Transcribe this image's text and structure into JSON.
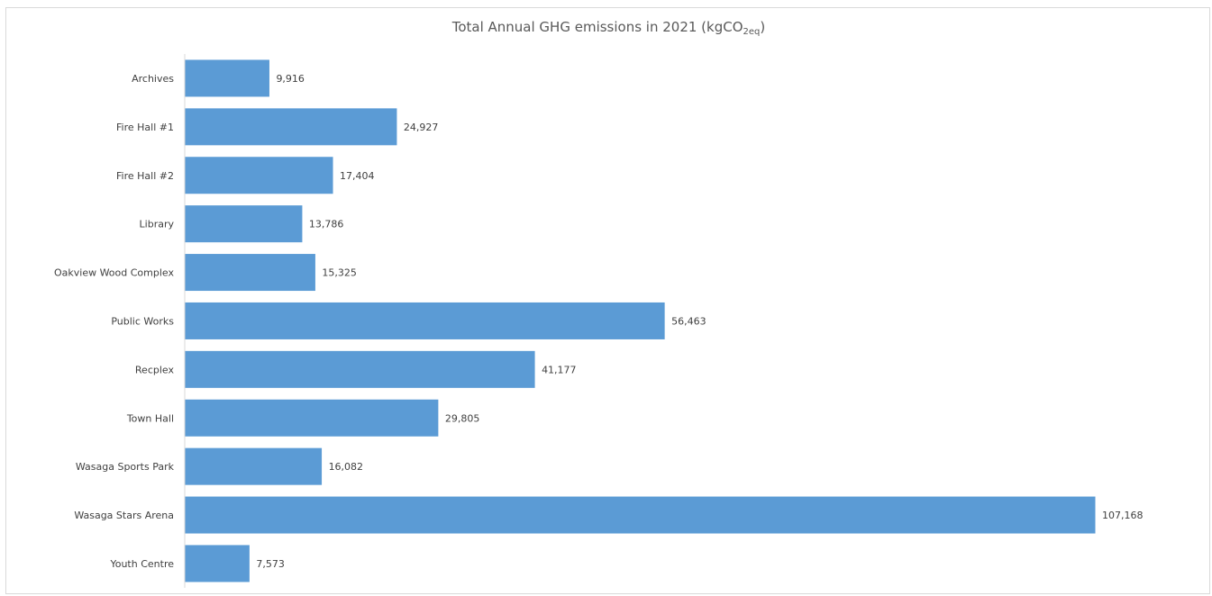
{
  "chart_data": {
    "type": "bar",
    "orientation": "horizontal",
    "title": {
      "main": "Total Annual GHG emissions in 2021 (kgCO",
      "subscript": "2eq",
      "close": ")"
    },
    "categories": [
      "Archives",
      "Fire Hall #1",
      "Fire Hall #2",
      "Library",
      "Oakview Wood Complex",
      "Public Works",
      "Recplex",
      "Town Hall",
      "Wasaga Sports Park",
      "Wasaga Stars Arena",
      "Youth Centre"
    ],
    "values": [
      9916,
      24927,
      17404,
      13786,
      15325,
      56463,
      41177,
      29805,
      16082,
      107168,
      7573
    ],
    "value_labels": [
      "9,916",
      "24,927",
      "17,404",
      "13,786",
      "15,325",
      "56,463",
      "41,177",
      "29,805",
      "16,082",
      "107,168",
      "7,573"
    ],
    "xlim": [
      0,
      107168
    ],
    "grid": false,
    "legend": "none",
    "bar_color": "#5b9bd5",
    "axis_color": "#d9d9d9"
  }
}
